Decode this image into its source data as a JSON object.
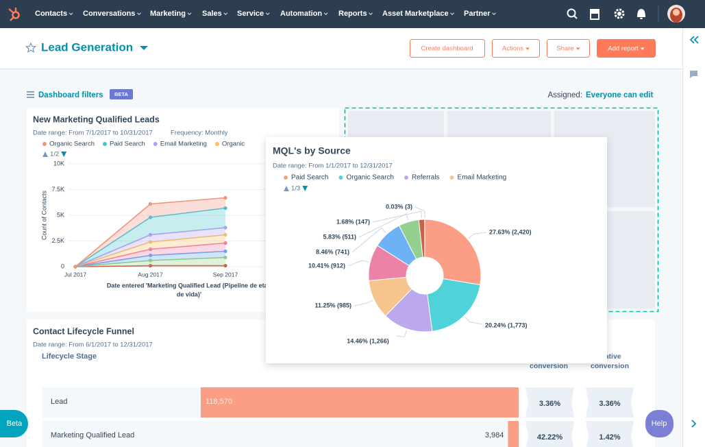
{
  "nav": {
    "items": [
      "Contacts",
      "Conversations",
      "Marketing",
      "Sales",
      "Service",
      "Automation",
      "Reports",
      "Asset Marketplace",
      "Partner"
    ]
  },
  "header": {
    "title": "Lead Generation",
    "buttons": [
      "Create dashboard",
      "Actions",
      "Share",
      "Add report"
    ]
  },
  "filters": {
    "label": "Dashboard filters",
    "badge": "BETA",
    "assigned_label": "Assigned:",
    "assigned_value": "Everyone can edit"
  },
  "chart_data": [
    {
      "type": "area",
      "title": "New Marketing Qualified Leads",
      "date_range": "Date range: From 7/1/2017 to 10/31/2017",
      "frequency": "Frequency: Monthly",
      "pager": "1/2",
      "x_label": [
        "Date entered 'Marketing Qualified Lead (Pipeline de etap",
        "de vida)'"
      ],
      "y_label": "Count of Contacts",
      "categories": [
        "Jul 2017",
        "Aug 2017",
        "Sep 2017"
      ],
      "ylim": [
        0,
        10000
      ],
      "yticks": [
        0,
        {
          "value": 2500,
          "label": "2.5K"
        },
        {
          "value": 5000,
          "label": "5K"
        },
        {
          "value": 7500,
          "label": "7.5K"
        },
        {
          "value": 10000,
          "label": "10K"
        }
      ],
      "stacked": true,
      "grid": true,
      "series": [
        {
          "name": "Organic Search",
          "color": "#f2937a",
          "values": [
            0,
            1300,
            1000
          ]
        },
        {
          "name": "Paid Search",
          "color": "#45c2d1",
          "values": [
            0,
            1700,
            1900
          ]
        },
        {
          "name": "Email Marketing",
          "color": "#b29ef0",
          "values": [
            0,
            700,
            700
          ]
        },
        {
          "name": "Organic",
          "color": "#f5bf66",
          "values": [
            0,
            700,
            800
          ]
        },
        {
          "color": "#ee7aa3",
          "values": [
            0,
            600,
            800
          ]
        },
        {
          "color": "#62a6ef",
          "values": [
            0,
            500,
            600
          ]
        },
        {
          "color": "#92cf84",
          "values": [
            0,
            500,
            800
          ]
        },
        {
          "color": "#cf5a42",
          "values": [
            0,
            100,
            100
          ]
        }
      ]
    },
    {
      "type": "pie",
      "title": "MQL's by Source",
      "date_range": "Date range: From 1/1/2017 to 12/31/2017",
      "pager": "1/3",
      "categories": [
        "Paid Search",
        "Organic Search",
        "Referrals",
        "Email Marketing",
        null,
        null,
        null,
        null,
        null
      ],
      "values": [
        2420,
        1773,
        1266,
        985,
        912,
        741,
        511,
        147,
        3
      ],
      "value_labels": [
        "27.63% (2,420)",
        "20.24% (1,773)",
        "14.46% (1,266)",
        "11.25% (985)",
        "10.41% (912)",
        "8.46% (741)",
        "5.83% (511)",
        "1.68% (147)",
        "0.03% (3)"
      ],
      "colors": [
        "#fa9e85",
        "#4fd2da",
        "#bca8ec",
        "#f6c48d",
        "#ec82a8",
        "#6db2f5",
        "#93d08f",
        "#cc6148",
        "#9b3f2e"
      ]
    }
  ],
  "funnel": {
    "title": "Contact Lifecycle Funnel",
    "date_range": "Date range: From 6/1/2017 to 12/31/2017",
    "stage_header": "Lifecycle Stage",
    "column_headers": [
      [
        "conversion"
      ],
      [
        "ulative",
        "conversion"
      ]
    ],
    "color": "#fa9e85",
    "rows": [
      {
        "stage": "Lead",
        "count": 118570,
        "count_label": "118,570",
        "conversion": "3.36%",
        "cumulative": "3.36%"
      },
      {
        "stage": "Marketing Qualified Lead",
        "count": 3984,
        "count_label": "3,984",
        "conversion": "42.22%",
        "cumulative": "1.42%"
      }
    ]
  },
  "beta": "Beta",
  "help": "Help"
}
